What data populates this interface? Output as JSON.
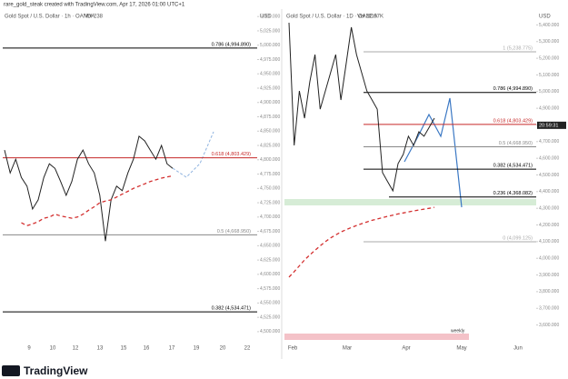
{
  "header": "rare_gold_steak created with TradingView.com, Apr 17, 2026 01:00 UTC+1",
  "logo": "TradingView",
  "chart_data": [
    {
      "type": "line",
      "title": "Gold Spot / U.S. Dollar · 1h · OANDA",
      "volume": "Vol 238",
      "currency": "USD",
      "x_labels": [
        "9",
        "10",
        "12",
        "13",
        "15",
        "16",
        "17",
        "19",
        "20",
        "22"
      ],
      "ylim": [
        4484,
        5063
      ],
      "yticks": [
        {
          "value": 4500,
          "label": "4,500.000"
        },
        {
          "value": 4525,
          "label": "4,525.000"
        },
        {
          "value": 4550,
          "label": "4,550.000"
        },
        {
          "value": 4575,
          "label": "4,575.000"
        },
        {
          "value": 4600,
          "label": "4,600.000"
        },
        {
          "value": 4625,
          "label": "4,625.000"
        },
        {
          "value": 4650,
          "label": "4,650.000"
        },
        {
          "value": 4675,
          "label": "4,675.000"
        },
        {
          "value": 4700,
          "label": "4,700.000"
        },
        {
          "value": 4725,
          "label": "4,725.000"
        },
        {
          "value": 4750,
          "label": "4,750.000"
        },
        {
          "value": 4775,
          "label": "4,775.000"
        },
        {
          "value": 4800,
          "label": "4,800.000"
        },
        {
          "value": 4825,
          "label": "4,825.000"
        },
        {
          "value": 4850,
          "label": "4,850.000"
        },
        {
          "value": 4875,
          "label": "4,875.000"
        },
        {
          "value": 4900,
          "label": "4,900.000"
        },
        {
          "value": 4925,
          "label": "4,925.000"
        },
        {
          "value": 4950,
          "label": "4,950.000"
        },
        {
          "value": 4975,
          "label": "4,975.000"
        },
        {
          "value": 5000,
          "label": "5,000.000"
        },
        {
          "value": 5025,
          "label": "5,025.000"
        },
        {
          "value": 5050,
          "label": "5,050.000"
        }
      ],
      "levels": [
        {
          "value": 4994.89,
          "label": "0.786 (4,994.890)",
          "color": "#000000"
        },
        {
          "value": 4803.429,
          "label": "0.618 (4,803.429)",
          "color": "#c62828"
        },
        {
          "value": 4668.95,
          "label": "0.5 (4,668.950)",
          "color": "#888888"
        },
        {
          "value": 4534.471,
          "label": "0.382 (4,534.471)",
          "color": "#000000"
        }
      ],
      "series": [
        {
          "name": "Price",
          "color": "#222222",
          "values": [
            4817,
            4777,
            4801,
            4769,
            4754,
            4714,
            4730,
            4769,
            4793,
            4785,
            4762,
            4738,
            4762,
            4801,
            4817,
            4793,
            4777,
            4738,
            4658,
            4730,
            4754,
            4746,
            4777,
            4801,
            4841,
            4833,
            4817,
            4801,
            4825,
            4793,
            4785
          ]
        },
        {
          "name": "MA",
          "color": "#d32f2f",
          "values": [
            null,
            null,
            null,
            4690,
            4685,
            4688,
            4692,
            4698,
            4700,
            4705,
            4702,
            4700,
            4698,
            4700,
            4705,
            4712,
            4718,
            4725,
            4728,
            4730,
            4735,
            4740,
            4745,
            4750,
            4754,
            4758,
            4762,
            4765,
            4768,
            4770,
            4772
          ]
        }
      ]
    },
    {
      "type": "line",
      "title": "Gold Spot / U.S. Dollar · 1D · OANDA",
      "volume": "Vol 22.97K",
      "currency": "USD",
      "badge": "20:59:31",
      "zone": "weekly",
      "x_labels": [
        "Feb",
        "Mar",
        "Apr",
        "May",
        "Jun"
      ],
      "ylim": [
        3505,
        5495
      ],
      "yticks": [
        {
          "value": 3600,
          "label": "3,600.000"
        },
        {
          "value": 3700,
          "label": "3,700.000"
        },
        {
          "value": 3800,
          "label": "3,800.000"
        },
        {
          "value": 3900,
          "label": "3,900.000"
        },
        {
          "value": 4000,
          "label": "4,000.000"
        },
        {
          "value": 4100,
          "label": "4,100.000"
        },
        {
          "value": 4200,
          "label": "4,200.000"
        },
        {
          "value": 4300,
          "label": "4,300.000"
        },
        {
          "value": 4400,
          "label": "4,400.000"
        },
        {
          "value": 4500,
          "label": "4,500.000"
        },
        {
          "value": 4600,
          "label": "4,600.000"
        },
        {
          "value": 4700,
          "label": "4,700.000"
        },
        {
          "value": 4800,
          "label": "4,800.000"
        },
        {
          "value": 4900,
          "label": "4,900.000"
        },
        {
          "value": 5000,
          "label": "5,000.000"
        },
        {
          "value": 5100,
          "label": "5,100.000"
        },
        {
          "value": 5200,
          "label": "5,200.000"
        },
        {
          "value": 5300,
          "label": "5,300.000"
        },
        {
          "value": 5400,
          "label": "5,400.000"
        }
      ],
      "levels": [
        {
          "value": 5238.775,
          "label": "1 (5,238.775)",
          "color": "#aaaaaa"
        },
        {
          "value": 4994.89,
          "label": "0.786 (4,994.890)",
          "color": "#000000"
        },
        {
          "value": 4803.429,
          "label": "0.618 (4,803.429)",
          "color": "#c62828"
        },
        {
          "value": 4668.95,
          "label": "0.5 (4,668.950)",
          "color": "#888888"
        },
        {
          "value": 4534.471,
          "label": "0.382 (4,534.471)",
          "color": "#000000"
        },
        {
          "value": 4368.082,
          "label": "0.236 (4,368.082)",
          "color": "#000000"
        },
        {
          "value": 4099.125,
          "label": "0 (4,099.125)",
          "color": "#aaaaaa"
        }
      ],
      "series": [
        {
          "name": "Price",
          "color": "#222222",
          "values": [
            5413,
            4677,
            5004,
            4841,
            5059,
            5222,
            4895,
            5004,
            5113,
            5222,
            4950,
            5168,
            5386,
            5222,
            5113,
            5004,
            4950,
            4895,
            4514,
            4459,
            4405,
            4568,
            4623,
            4732,
            4677,
            4759,
            4732,
            4786,
            4841
          ]
        },
        {
          "name": "MA",
          "color": "#d32f2f",
          "values": [
            3887,
            3920,
            3955,
            3990,
            4020,
            4048,
            4075,
            4100,
            4122,
            4140,
            4158,
            4172,
            4185,
            4197,
            4208,
            4218,
            4228,
            4236,
            4244,
            4252,
            4259,
            4266,
            4272,
            4278,
            4284,
            4290,
            4295,
            4300,
            4306
          ]
        }
      ]
    }
  ]
}
